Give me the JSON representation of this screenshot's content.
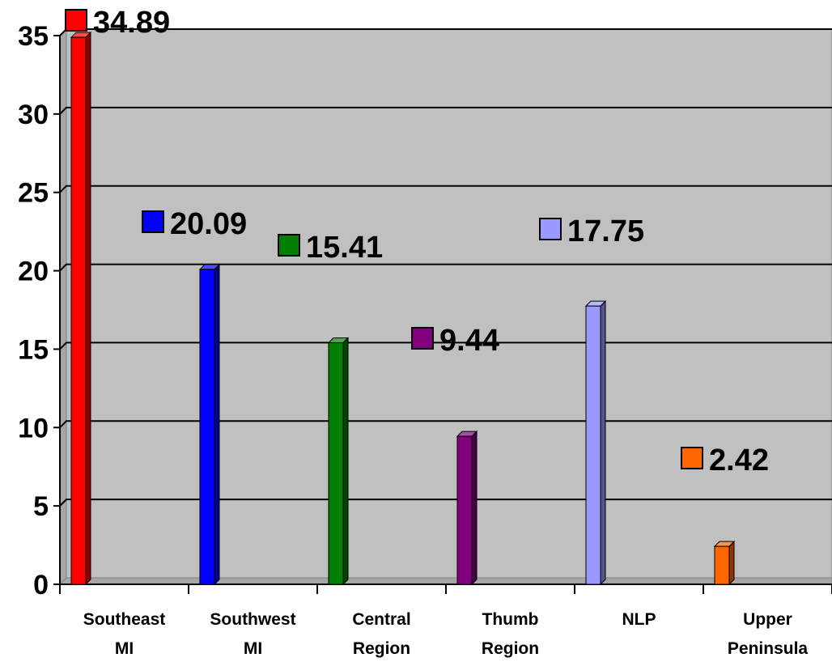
{
  "chart_data": {
    "type": "bar",
    "title": "",
    "xlabel": "",
    "ylabel": "",
    "ylim": [
      0,
      35
    ],
    "yticks": [
      0,
      5,
      10,
      15,
      20,
      25,
      30,
      35
    ],
    "grid": true,
    "style": "3d",
    "categories": [
      [
        "Southeast",
        "MI"
      ],
      [
        "Southwest",
        "MI"
      ],
      [
        "Central",
        "Region"
      ],
      [
        "Thumb",
        "Region"
      ],
      [
        "NLP"
      ],
      [
        "Upper",
        "Peninsula"
      ]
    ],
    "values": [
      34.89,
      20.09,
      15.41,
      9.44,
      17.75,
      2.42
    ],
    "data_labels": [
      "34.89",
      "20.09",
      "15.41",
      "9.44",
      "17.75",
      "2.42"
    ],
    "colors": [
      "#ff0000",
      "#0000ff",
      "#008000",
      "#800080",
      "#9999ff",
      "#ff6600"
    ]
  }
}
